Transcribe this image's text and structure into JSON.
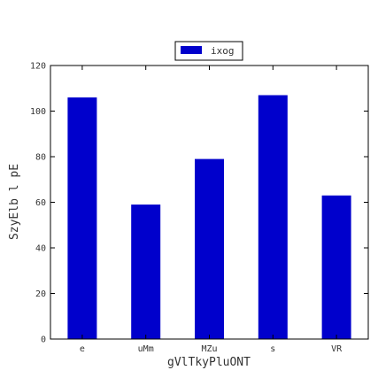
{
  "chart_data": {
    "type": "bar",
    "categories": [
      "e",
      "uMm",
      "MZu",
      "s",
      "VR"
    ],
    "series": [
      {
        "name": "ixog",
        "values": [
          106,
          59,
          79,
          107,
          63
        ],
        "color": "#0000cc"
      }
    ],
    "xlabel": "gVlTkyPluONT",
    "ylabel": "SzyElb l pE",
    "ylim": [
      0,
      120
    ],
    "yticks": [
      0,
      20,
      40,
      60,
      80,
      100,
      120
    ],
    "grid": false,
    "legend_position": "top-center"
  }
}
